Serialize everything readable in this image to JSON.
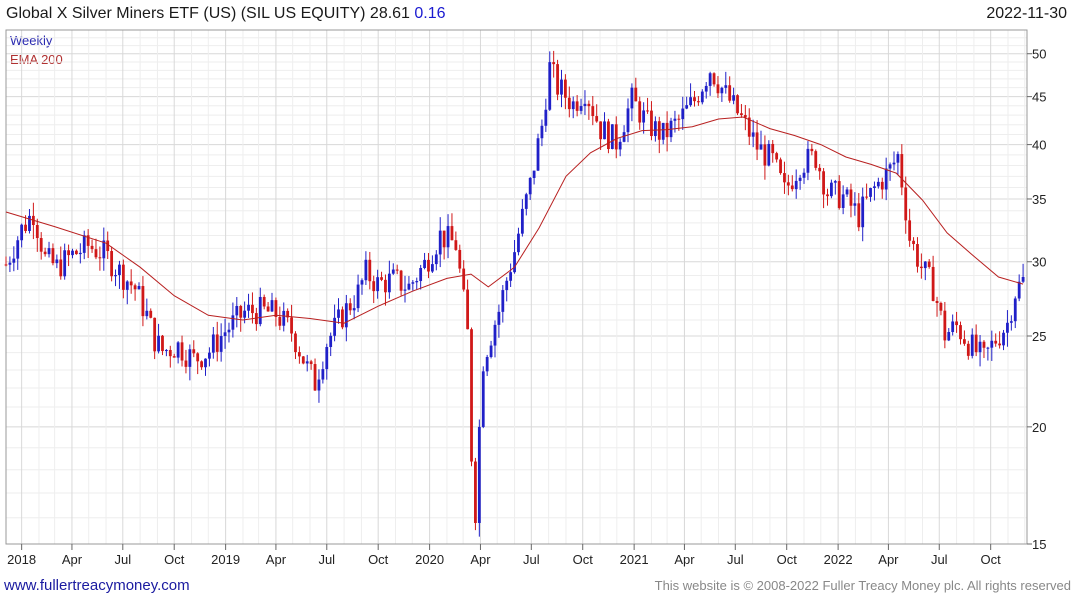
{
  "header": {
    "title": "Global X Silver Miners ETF (US) (SIL US EQUITY) 28.61",
    "change": "0.16",
    "date": "2022-11-30"
  },
  "legend": {
    "weekly": "Weekly",
    "ema": "EMA 200"
  },
  "footer": {
    "website": "www.fullertreacymoney.com",
    "copyright": "This website is © 2008-2022 Fuller Treacy Money plc. All rights reserved"
  },
  "colors": {
    "up": "#2020c8",
    "down": "#d01818",
    "ema": "#b82020",
    "grid": "#d8d8d8"
  },
  "chart_data": {
    "type": "candlestick",
    "interval": "weekly",
    "x_range": [
      "2017-12-04",
      "2022-12-05"
    ],
    "ylim": [
      15,
      53
    ],
    "y_scale": "log",
    "y_ticks": [
      15,
      20,
      25,
      30,
      35,
      40,
      45,
      50
    ],
    "x_ticks": [
      {
        "label": "2018",
        "date": "2018-01-01"
      },
      {
        "label": "Apr",
        "date": "2018-04-01"
      },
      {
        "label": "Jul",
        "date": "2018-07-01"
      },
      {
        "label": "Oct",
        "date": "2018-10-01"
      },
      {
        "label": "2019",
        "date": "2019-01-01"
      },
      {
        "label": "Apr",
        "date": "2019-04-01"
      },
      {
        "label": "Jul",
        "date": "2019-07-01"
      },
      {
        "label": "Oct",
        "date": "2019-10-01"
      },
      {
        "label": "2020",
        "date": "2020-01-01"
      },
      {
        "label": "Apr",
        "date": "2020-04-01"
      },
      {
        "label": "Jul",
        "date": "2020-07-01"
      },
      {
        "label": "Oct",
        "date": "2020-10-01"
      },
      {
        "label": "2021",
        "date": "2021-01-01"
      },
      {
        "label": "Apr",
        "date": "2021-04-01"
      },
      {
        "label": "Jul",
        "date": "2021-07-01"
      },
      {
        "label": "Oct",
        "date": "2021-10-01"
      },
      {
        "label": "2022",
        "date": "2022-01-01"
      },
      {
        "label": "Apr",
        "date": "2022-04-01"
      },
      {
        "label": "Jul",
        "date": "2022-07-01"
      },
      {
        "label": "Oct",
        "date": "2022-10-01"
      }
    ],
    "close_series": {
      "name": "Weekly",
      "points": [
        [
          "2017-12-04",
          29.8
        ],
        [
          "2018-01-01",
          32.5
        ],
        [
          "2018-01-22",
          33.9
        ],
        [
          "2018-02-12",
          30.2
        ],
        [
          "2018-03-05",
          29.6
        ],
        [
          "2018-04-02",
          30.5
        ],
        [
          "2018-04-30",
          31.2
        ],
        [
          "2018-05-28",
          30.6
        ],
        [
          "2018-06-25",
          29.3
        ],
        [
          "2018-07-23",
          28.1
        ],
        [
          "2018-08-13",
          26.3
        ],
        [
          "2018-08-27",
          24.8
        ],
        [
          "2018-09-10",
          24.1
        ],
        [
          "2018-10-08",
          24.4
        ],
        [
          "2018-11-05",
          23.6
        ],
        [
          "2018-12-03",
          24.1
        ],
        [
          "2018-12-31",
          25.3
        ],
        [
          "2019-02-04",
          26.5
        ],
        [
          "2019-03-04",
          26.6
        ],
        [
          "2019-04-01",
          26.4
        ],
        [
          "2019-04-29",
          25.3
        ],
        [
          "2019-05-27",
          23.1
        ],
        [
          "2019-06-10",
          22.3
        ],
        [
          "2019-07-01",
          24.6
        ],
        [
          "2019-07-29",
          26.3
        ],
        [
          "2019-08-26",
          27.8
        ],
        [
          "2019-09-09",
          29.2
        ],
        [
          "2019-09-30",
          28.4
        ],
        [
          "2019-10-28",
          28.7
        ],
        [
          "2019-11-25",
          28.2
        ],
        [
          "2019-12-23",
          29.8
        ],
        [
          "2020-01-20",
          32.0
        ],
        [
          "2020-02-17",
          31.3
        ],
        [
          "2020-03-09",
          25.1
        ],
        [
          "2020-03-16",
          18.7
        ],
        [
          "2020-03-23",
          16.3
        ],
        [
          "2020-04-06",
          23.6
        ],
        [
          "2020-05-04",
          26.6
        ],
        [
          "2020-06-01",
          30.8
        ],
        [
          "2020-06-29",
          36.2
        ],
        [
          "2020-07-20",
          41.9
        ],
        [
          "2020-08-03",
          48.3
        ],
        [
          "2020-08-17",
          46.1
        ],
        [
          "2020-09-14",
          44.2
        ],
        [
          "2020-10-05",
          45.8
        ],
        [
          "2020-11-02",
          41.6
        ],
        [
          "2020-11-30",
          40.3
        ],
        [
          "2020-12-28",
          44.6
        ],
        [
          "2021-01-25",
          42.1
        ],
        [
          "2021-02-22",
          40.9
        ],
        [
          "2021-03-22",
          42.4
        ],
        [
          "2021-04-19",
          44.6
        ],
        [
          "2021-05-17",
          48.2
        ],
        [
          "2021-06-14",
          45.2
        ],
        [
          "2021-07-12",
          42.6
        ],
        [
          "2021-08-09",
          39.8
        ],
        [
          "2021-09-06",
          38.4
        ],
        [
          "2021-09-27",
          35.6
        ],
        [
          "2021-10-25",
          38.2
        ],
        [
          "2021-11-22",
          38.8
        ],
        [
          "2021-12-13",
          35.6
        ],
        [
          "2022-01-10",
          35.2
        ],
        [
          "2022-02-07",
          33.6
        ],
        [
          "2022-03-07",
          35.9
        ],
        [
          "2022-04-04",
          37.6
        ],
        [
          "2022-04-18",
          38.9
        ],
        [
          "2022-05-09",
          31.8
        ],
        [
          "2022-05-30",
          29.6
        ],
        [
          "2022-06-20",
          28.2
        ],
        [
          "2022-07-11",
          25.1
        ],
        [
          "2022-08-01",
          25.6
        ],
        [
          "2022-08-29",
          24.3
        ],
        [
          "2022-09-19",
          23.6
        ],
        [
          "2022-10-10",
          24.8
        ],
        [
          "2022-10-31",
          25.8
        ],
        [
          "2022-11-14",
          27.9
        ],
        [
          "2022-11-28",
          28.61
        ]
      ]
    },
    "ema_series": {
      "name": "EMA 200",
      "points": [
        [
          "2017-12-04",
          33.9
        ],
        [
          "2018-03-01",
          32.7
        ],
        [
          "2018-06-01",
          31.4
        ],
        [
          "2018-08-01",
          29.6
        ],
        [
          "2018-10-01",
          27.6
        ],
        [
          "2018-12-01",
          26.3
        ],
        [
          "2019-02-01",
          26.0
        ],
        [
          "2019-04-01",
          26.3
        ],
        [
          "2019-06-01",
          26.1
        ],
        [
          "2019-08-01",
          25.8
        ],
        [
          "2019-10-01",
          26.9
        ],
        [
          "2019-12-01",
          27.9
        ],
        [
          "2020-02-01",
          28.8
        ],
        [
          "2020-03-15",
          29.1
        ],
        [
          "2020-04-15",
          28.2
        ],
        [
          "2020-06-01",
          29.6
        ],
        [
          "2020-07-15",
          32.6
        ],
        [
          "2020-09-01",
          37.0
        ],
        [
          "2020-10-15",
          39.2
        ],
        [
          "2020-12-01",
          40.6
        ],
        [
          "2021-01-15",
          41.4
        ],
        [
          "2021-03-01",
          41.5
        ],
        [
          "2021-04-15",
          41.8
        ],
        [
          "2021-06-01",
          42.6
        ],
        [
          "2021-07-15",
          42.8
        ],
        [
          "2021-09-01",
          41.6
        ],
        [
          "2021-10-15",
          40.9
        ],
        [
          "2021-12-01",
          40.0
        ],
        [
          "2022-01-15",
          38.8
        ],
        [
          "2022-03-01",
          38.1
        ],
        [
          "2022-04-15",
          37.3
        ],
        [
          "2022-06-01",
          34.9
        ],
        [
          "2022-07-15",
          32.2
        ],
        [
          "2022-09-01",
          30.4
        ],
        [
          "2022-10-15",
          28.9
        ],
        [
          "2022-11-28",
          28.4
        ]
      ]
    }
  }
}
